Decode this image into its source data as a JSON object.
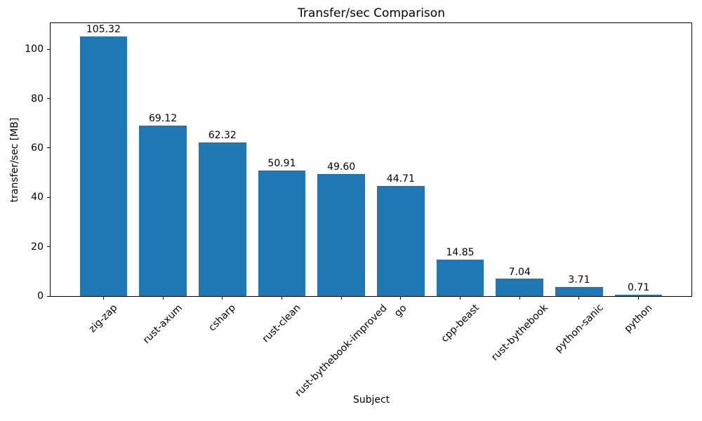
{
  "chart_data": {
    "type": "bar",
    "title": "Transfer/sec Comparison",
    "xlabel": "Subject",
    "ylabel": "transfer/sec [MB]",
    "categories": [
      "zig-zap",
      "rust-axum",
      "csharp",
      "rust-clean",
      "rust-bythebook-improved",
      "go",
      "cpp-beast",
      "rust-bythebook",
      "python-sanic",
      "python"
    ],
    "values": [
      105.32,
      69.12,
      62.32,
      50.91,
      49.6,
      44.71,
      14.85,
      7.04,
      3.71,
      0.71
    ],
    "value_labels": [
      "105.32",
      "69.12",
      "62.32",
      "50.91",
      "49.60",
      "44.71",
      "14.85",
      "7.04",
      "3.71",
      "0.71"
    ],
    "ylim": [
      0,
      110.6
    ],
    "yticks": [
      0,
      20,
      40,
      60,
      80,
      100
    ],
    "bar_color": "#1f77b4",
    "grid": false,
    "legend": null,
    "x_tick_rotation_deg": 45,
    "bar_width_fraction": 0.8
  }
}
